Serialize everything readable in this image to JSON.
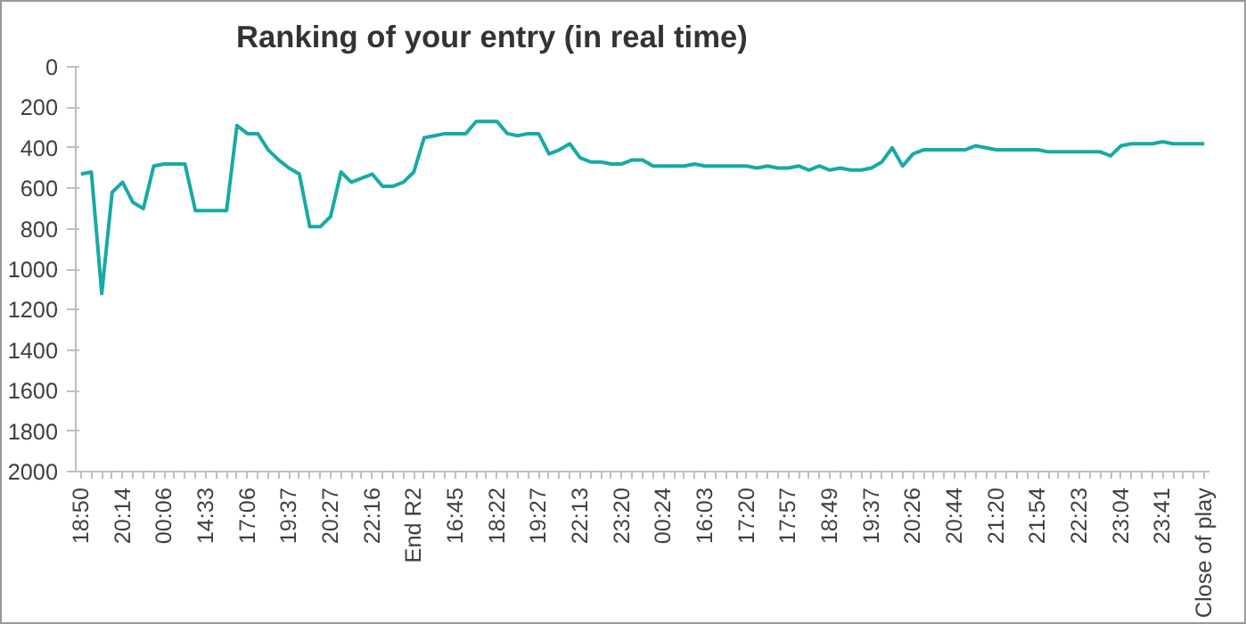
{
  "chart_data": {
    "type": "line",
    "title": "Ranking of your entry (in real time)",
    "categories": [
      "18:50",
      null,
      null,
      null,
      "20:14",
      null,
      null,
      null,
      "00:06",
      null,
      null,
      null,
      "14:33",
      null,
      null,
      null,
      "17:06",
      null,
      null,
      null,
      "19:37",
      null,
      null,
      null,
      "20:27",
      null,
      null,
      null,
      "22:16",
      null,
      null,
      null,
      "End R2",
      null,
      null,
      null,
      "16:45",
      null,
      null,
      null,
      "18:22",
      null,
      null,
      null,
      "19:27",
      null,
      null,
      null,
      "22:13",
      null,
      null,
      null,
      "23:20",
      null,
      null,
      null,
      "00:24",
      null,
      null,
      null,
      "16:03",
      null,
      null,
      null,
      "17:20",
      null,
      null,
      null,
      "17:57",
      null,
      null,
      null,
      "18:49",
      null,
      null,
      null,
      "19:37",
      null,
      null,
      null,
      "20:26",
      null,
      null,
      null,
      "20:44",
      null,
      null,
      null,
      "21:20",
      null,
      null,
      null,
      "21:54",
      null,
      null,
      null,
      "22:23",
      null,
      null,
      null,
      "23:04",
      null,
      null,
      null,
      "23:41",
      null,
      null,
      null,
      "Close of play"
    ],
    "series": [
      {
        "color": "#17aaa6",
        "values": [
          530,
          520,
          1120,
          620,
          570,
          670,
          700,
          490,
          480,
          480,
          480,
          710,
          710,
          710,
          710,
          290,
          330,
          330,
          410,
          460,
          500,
          530,
          790,
          790,
          740,
          520,
          570,
          550,
          530,
          590,
          590,
          570,
          520,
          350,
          340,
          330,
          330,
          330,
          270,
          270,
          270,
          330,
          340,
          330,
          330,
          430,
          410,
          380,
          450,
          470,
          470,
          480,
          480,
          460,
          460,
          490,
          490,
          490,
          490,
          480,
          490,
          490,
          490,
          490,
          490,
          500,
          490,
          500,
          500,
          490,
          510,
          490,
          510,
          500,
          510,
          510,
          500,
          470,
          400,
          490,
          430,
          410,
          410,
          410,
          410,
          410,
          390,
          400,
          410,
          410,
          410,
          410,
          410,
          420,
          420,
          420,
          420,
          420,
          420,
          440,
          390,
          380,
          380,
          380,
          370,
          380,
          380,
          380,
          380
        ]
      }
    ],
    "ylim": [
      2000,
      0
    ],
    "yticks": [
      0,
      200,
      400,
      600,
      800,
      1000,
      1200,
      1400,
      1600,
      1800,
      2000
    ],
    "grid": false,
    "marker": "none",
    "line_style": "solid"
  }
}
